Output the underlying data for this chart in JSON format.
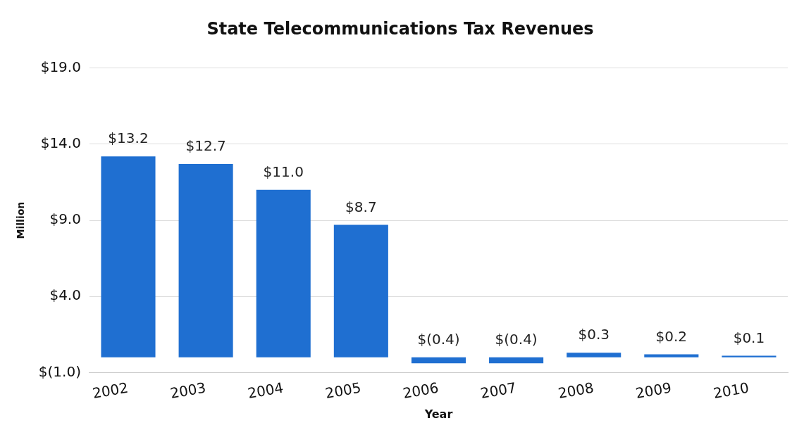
{
  "chart_data": {
    "type": "bar",
    "title": "State Telecommunications Tax Revenues",
    "xlabel": "Year",
    "ylabel": "Million",
    "categories": [
      "2002",
      "2003",
      "2004",
      "2005",
      "2006",
      "2007",
      "2008",
      "2009",
      "2010"
    ],
    "values": [
      13.2,
      12.7,
      11.0,
      8.7,
      -0.4,
      -0.4,
      0.3,
      0.2,
      0.1
    ],
    "value_labels": [
      "$13.2",
      "$12.7",
      "$11.0",
      "$8.7",
      "$(0.4)",
      "$(0.4)",
      "$0.3",
      "$0.2",
      "$0.1"
    ],
    "color": "#1f6fd1",
    "ylim": [
      -1,
      19
    ],
    "yticks": [
      {
        "value": -1,
        "label": "$(1.0)"
      },
      {
        "value": 4,
        "label": "$4.0"
      },
      {
        "value": 9,
        "label": "$9.0"
      },
      {
        "value": 14,
        "label": "$14.0"
      },
      {
        "value": 19,
        "label": "$19.0"
      }
    ],
    "grid": "y",
    "legend": false
  }
}
